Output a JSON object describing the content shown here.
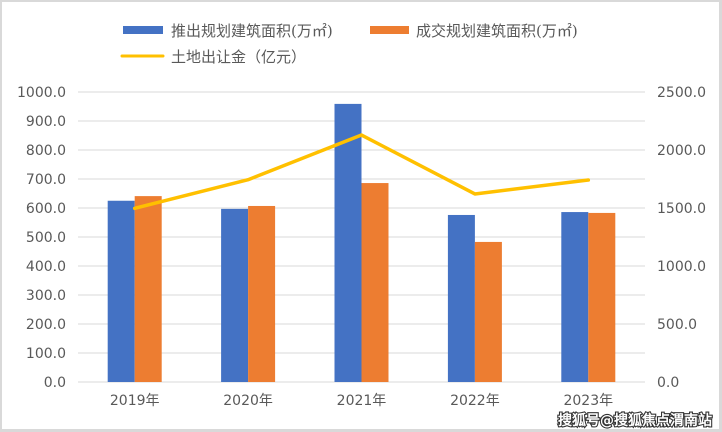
{
  "chart_data": {
    "type": "bar",
    "title": "",
    "categories": [
      "2019年",
      "2020年",
      "2021年",
      "2022年",
      "2023年"
    ],
    "series": [
      {
        "name": "推出规划建筑面积(万㎡)",
        "type": "bar",
        "axis": "left",
        "color": "#4472C4",
        "values": [
          625,
          597,
          959,
          576,
          586
        ]
      },
      {
        "name": "成交规划建筑面积(万㎡)",
        "type": "bar",
        "axis": "left",
        "color": "#ED7D31",
        "values": [
          641,
          607,
          686,
          483,
          583
        ]
      },
      {
        "name": "土地出让金（亿元）",
        "type": "line",
        "axis": "right",
        "color": "#FFC000",
        "values": [
          1497,
          1744,
          2129,
          1621,
          1741
        ]
      }
    ],
    "left_axis": {
      "ylim": [
        0,
        1000
      ],
      "ticks": [
        "0.0",
        "100.0",
        "200.0",
        "300.0",
        "400.0",
        "500.0",
        "600.0",
        "700.0",
        "800.0",
        "900.0",
        "1000.0"
      ],
      "tick_values": [
        0,
        100,
        200,
        300,
        400,
        500,
        600,
        700,
        800,
        900,
        1000
      ]
    },
    "right_axis": {
      "ylim": [
        0,
        2500
      ],
      "ticks": [
        "0.0",
        "500.0",
        "1000.0",
        "1500.0",
        "2000.0",
        "2500.0"
      ],
      "tick_values": [
        0,
        500,
        1000,
        1500,
        2000,
        2500
      ]
    },
    "grid": true,
    "legend": "top"
  },
  "watermark": "搜狐号@搜狐焦点渭南站"
}
